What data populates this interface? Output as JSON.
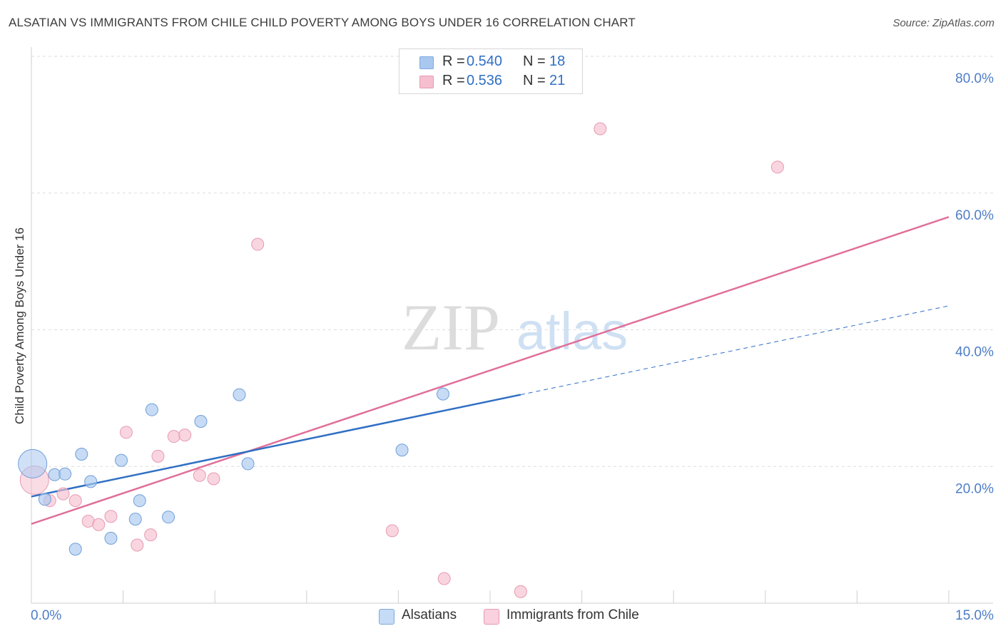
{
  "header": {
    "title": "ALSATIAN VS IMMIGRANTS FROM CHILE CHILD POVERTY AMONG BOYS UNDER 16 CORRELATION CHART",
    "source": "Source: ZipAtlas.com"
  },
  "watermark": {
    "zip": "ZIP",
    "atlas": "atlas"
  },
  "legend": {
    "rows": [
      {
        "r_label": "R =",
        "r_value": "0.540",
        "n_label": "N =",
        "n_value": "18",
        "color": "#a9c8f0",
        "border": "#7fa8dc"
      },
      {
        "r_label": "R =",
        "r_value": "0.536",
        "n_label": "N =",
        "n_value": "21",
        "color": "#f6bfd0",
        "border": "#e79ab3"
      }
    ]
  },
  "bottom_legend": [
    {
      "label": "Alsatians",
      "color": "#c5dbf6",
      "border": "#7fa8dc"
    },
    {
      "label": "Immigrants from Chile",
      "color": "#fad1de",
      "border": "#e79ab3"
    }
  ],
  "chart_data": {
    "type": "scatter",
    "ylabel": "Child Poverty Among Boys Under 16",
    "xlim": [
      0,
      15
    ],
    "ylim": [
      0,
      80
    ],
    "x_tick_labels": [
      {
        "value": 0,
        "label": "0.0%"
      },
      {
        "value": 15,
        "label": "15.0%"
      }
    ],
    "y_tick_labels": [
      {
        "value": 20,
        "label": "20.0%"
      },
      {
        "value": 40,
        "label": "40.0%"
      },
      {
        "value": 60,
        "label": "60.0%"
      },
      {
        "value": 80,
        "label": "80.0%"
      }
    ],
    "grid": true,
    "series": [
      {
        "name": "Alsatians",
        "color": "#a9c8f0",
        "stroke": "#6f9fd8",
        "line_color": "#2f6fc4",
        "points": [
          {
            "x": 0.02,
            "y": 20.4,
            "big": true
          },
          {
            "x": 0.22,
            "y": 15.2
          },
          {
            "x": 0.38,
            "y": 18.8
          },
          {
            "x": 0.55,
            "y": 18.9
          },
          {
            "x": 0.72,
            "y": 7.9
          },
          {
            "x": 0.82,
            "y": 21.8
          },
          {
            "x": 0.97,
            "y": 17.8
          },
          {
            "x": 1.3,
            "y": 9.5
          },
          {
            "x": 1.47,
            "y": 20.9
          },
          {
            "x": 1.7,
            "y": 12.3
          },
          {
            "x": 1.77,
            "y": 15.0
          },
          {
            "x": 1.97,
            "y": 28.3
          },
          {
            "x": 2.24,
            "y": 12.6
          },
          {
            "x": 2.77,
            "y": 26.6
          },
          {
            "x": 3.4,
            "y": 30.5
          },
          {
            "x": 3.54,
            "y": 20.4
          },
          {
            "x": 6.06,
            "y": 22.4
          },
          {
            "x": 6.73,
            "y": 30.6
          }
        ],
        "trend": {
          "x0": 0.0,
          "y0": 15.6,
          "x1": 8.0,
          "y1": 30.5,
          "dash_x1": 15.0,
          "dash_y1": 43.5
        }
      },
      {
        "name": "Immigrants from Chile",
        "color": "#f6bfd0",
        "stroke": "#e79ab3",
        "line_color": "#e0709a",
        "points": [
          {
            "x": 0.05,
            "y": 18.0,
            "big": true
          },
          {
            "x": 0.3,
            "y": 15.0
          },
          {
            "x": 0.52,
            "y": 16.0
          },
          {
            "x": 0.72,
            "y": 15.0
          },
          {
            "x": 0.93,
            "y": 12.0
          },
          {
            "x": 1.1,
            "y": 11.5
          },
          {
            "x": 1.3,
            "y": 12.7
          },
          {
            "x": 1.55,
            "y": 25.0
          },
          {
            "x": 1.73,
            "y": 8.5
          },
          {
            "x": 1.95,
            "y": 10.0
          },
          {
            "x": 2.07,
            "y": 21.5
          },
          {
            "x": 2.33,
            "y": 24.4
          },
          {
            "x": 2.51,
            "y": 24.6
          },
          {
            "x": 2.75,
            "y": 18.7
          },
          {
            "x": 2.98,
            "y": 18.2
          },
          {
            "x": 3.7,
            "y": 52.5
          },
          {
            "x": 5.9,
            "y": 10.6
          },
          {
            "x": 6.75,
            "y": 3.6
          },
          {
            "x": 8.0,
            "y": 1.7
          },
          {
            "x": 9.3,
            "y": 69.4
          },
          {
            "x": 12.2,
            "y": 63.8
          }
        ],
        "trend": {
          "x0": 0.0,
          "y0": 11.6,
          "x1": 15.0,
          "y1": 56.5
        }
      }
    ]
  }
}
